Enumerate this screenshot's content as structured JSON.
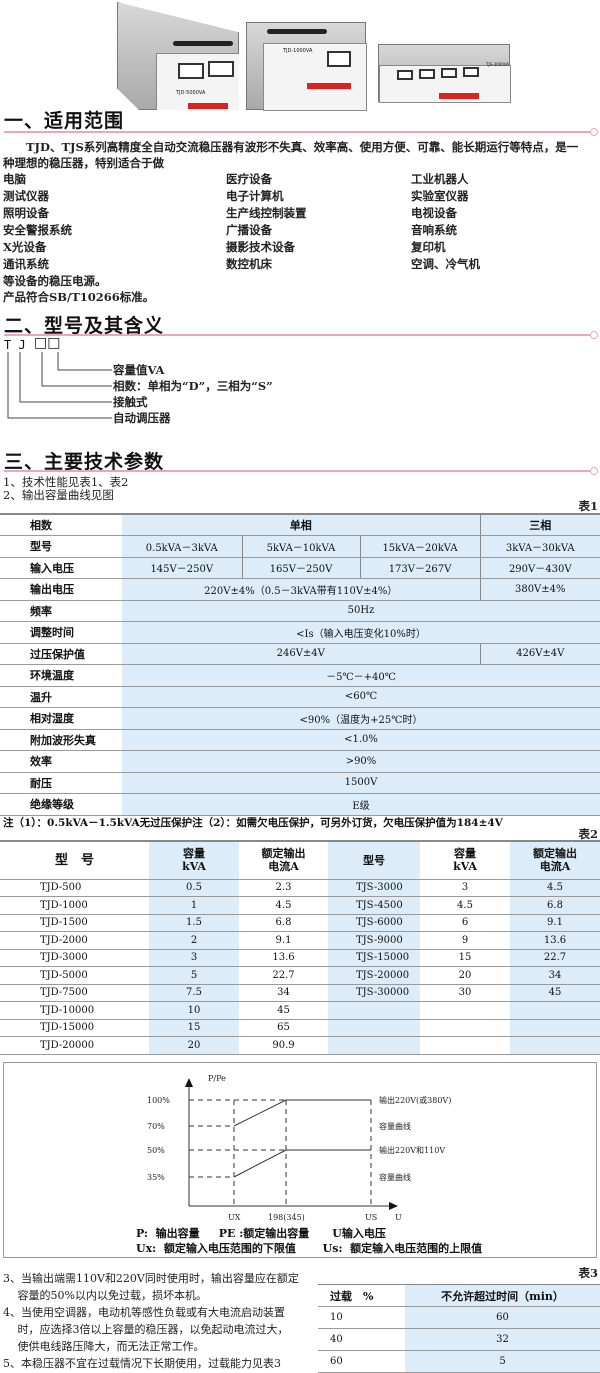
{
  "products": [
    {
      "model": "TJD-5000VA"
    },
    {
      "model": "TJD-1000VA"
    },
    {
      "model": "TJS-3000VA"
    }
  ],
  "section1": {
    "title": "一、适用范围",
    "intro_line1": "TJD、TJS系列高精度全自动交流稳压器有波形不失真、效率高、使用方便、可靠、能长期运行等特点，是一",
    "intro_line2": "种理想的稳压器，特别适合于做",
    "uses": [
      [
        "电脑",
        "医疗设备",
        "工业机器人"
      ],
      [
        "测试仪器",
        "电子计算机",
        "实验室仪器"
      ],
      [
        "照明设备",
        "生产线控制装置",
        "电视设备"
      ],
      [
        "安全警报系统",
        "广播设备",
        "音响系统"
      ],
      [
        "X光设备",
        "摄影技术设备",
        "复印机"
      ],
      [
        "通讯系统",
        "数控机床",
        "空调、冷气机"
      ]
    ],
    "closing1": "等设备的稳压电源。",
    "closing2": "产品符合SB/T10266标准。"
  },
  "section2": {
    "title": "二、型号及其含义",
    "code": "T J",
    "box_glyph": "□□",
    "meanings": [
      "容量值VA",
      "相数：单相为“D”，三相为“S”",
      "接触式",
      "自动调压器"
    ]
  },
  "section3": {
    "title": "三、主要技术参数",
    "item1": "1、技术性能见表1、表2",
    "item2": "2、输出容量曲线见图"
  },
  "table1": {
    "caption": "表1",
    "rows": [
      {
        "label": "相数",
        "cells": [
          "单相",
          "三相"
        ]
      },
      {
        "label": "型号",
        "cells": [
          "0.5kVA－3kVA",
          "5kVA－10kVA",
          "15kVA－20kVA",
          "3kVA－30kVA"
        ]
      },
      {
        "label": "输入电压",
        "cells": [
          "145V－250V",
          "165V－250V",
          "173V－267V",
          "290V－430V"
        ]
      },
      {
        "label": "输出电压",
        "cells": [
          "220V±4%（0.5－3kVA带有110V±4%）",
          "380V±4%"
        ]
      },
      {
        "label": "频率",
        "cells": [
          "50Hz"
        ]
      },
      {
        "label": "调整时间",
        "cells": [
          "<Is（输入电压变化10%时）"
        ]
      },
      {
        "label": "过压保护值",
        "cells": [
          "246V±4V",
          "426V±4V"
        ]
      },
      {
        "label": "环境温度",
        "cells": [
          "－5℃－+40℃"
        ]
      },
      {
        "label": "温升",
        "cells": [
          "<60℃"
        ]
      },
      {
        "label": "相对湿度",
        "cells": [
          "<90%（温度为+25℃时）"
        ]
      },
      {
        "label": "附加波形失真",
        "cells": [
          "<1.0%"
        ]
      },
      {
        "label": "效率",
        "cells": [
          ">90%"
        ]
      },
      {
        "label": "耐压",
        "cells": [
          "1500V"
        ]
      },
      {
        "label": "绝缘等级",
        "cells": [
          "E级"
        ]
      }
    ],
    "note": "注（1）：0.5kVA－1.5kVA无过压保护注（2）：如需欠电压保护，可另外订货，欠电压保护值为184±4V"
  },
  "table2": {
    "caption": "表2",
    "headers": [
      "型　号",
      "容量\nkVA",
      "额定输出\n电流A",
      "型号",
      "容量\nkVA",
      "额定输出\n电流A"
    ],
    "rows": [
      [
        "TJD-500",
        "0.5",
        "2.3",
        "TJS-3000",
        "3",
        "4.5"
      ],
      [
        "TJD-1000",
        "1",
        "4.5",
        "TJS-4500",
        "4.5",
        "6.8"
      ],
      [
        "TJD-1500",
        "1.5",
        "6.8",
        "TJS-6000",
        "6",
        "9.1"
      ],
      [
        "TJD-2000",
        "2",
        "9.1",
        "TJS-9000",
        "9",
        "13.6"
      ],
      [
        "TJD-3000",
        "3",
        "13.6",
        "TJS-15000",
        "15",
        "22.7"
      ],
      [
        "TJD-5000",
        "5",
        "22.7",
        "TJS-20000",
        "20",
        "34"
      ],
      [
        "TJD-7500",
        "7.5",
        "34",
        "TJS-30000",
        "30",
        "45"
      ],
      [
        "TJD-10000",
        "10",
        "45",
        "",
        "",
        ""
      ],
      [
        "TJD-15000",
        "15",
        "65",
        "",
        "",
        ""
      ],
      [
        "TJD-20000",
        "20",
        "90.9",
        "",
        "",
        ""
      ]
    ]
  },
  "diagram": {
    "y_axis": "P/Pe",
    "x_axis": "U",
    "y_ticks": [
      "100%",
      "70%",
      "50%",
      "35%"
    ],
    "x_ticks": [
      "UX",
      "198(345)",
      "US"
    ],
    "curve_labels": [
      "输出220V(或380V)",
      "容量曲线",
      "输出220V和110V",
      "容量曲线"
    ],
    "legend1": "P:  输出容量     PE :额定输出容量      U输入电压",
    "legend2": "Ux:  额定输入电压范围的下限值       Us:  额定输入电压范围的上限值"
  },
  "notes": [
    "3、当输出端需110V和220V同时使用时，输出容量应在额定",
    "　 容量的50%以内以免过载，损坏本机。",
    "4、当使用空调器，电动机等感性负载或有大电流启动装置",
    "　 时，应选择3倍以上容量的稳压器，以免起动电流过大，",
    "　 使供电线路压降大，而无法正常工作。",
    "5、本稳压器不宜在过载情况下长期使用，过载能力见表3"
  ],
  "table3": {
    "caption": "表3",
    "headers": [
      "过载　%",
      "不允许超过时间（min）"
    ],
    "rows": [
      [
        "10",
        "60"
      ],
      [
        "40",
        "32"
      ],
      [
        "60",
        "5"
      ]
    ]
  }
}
